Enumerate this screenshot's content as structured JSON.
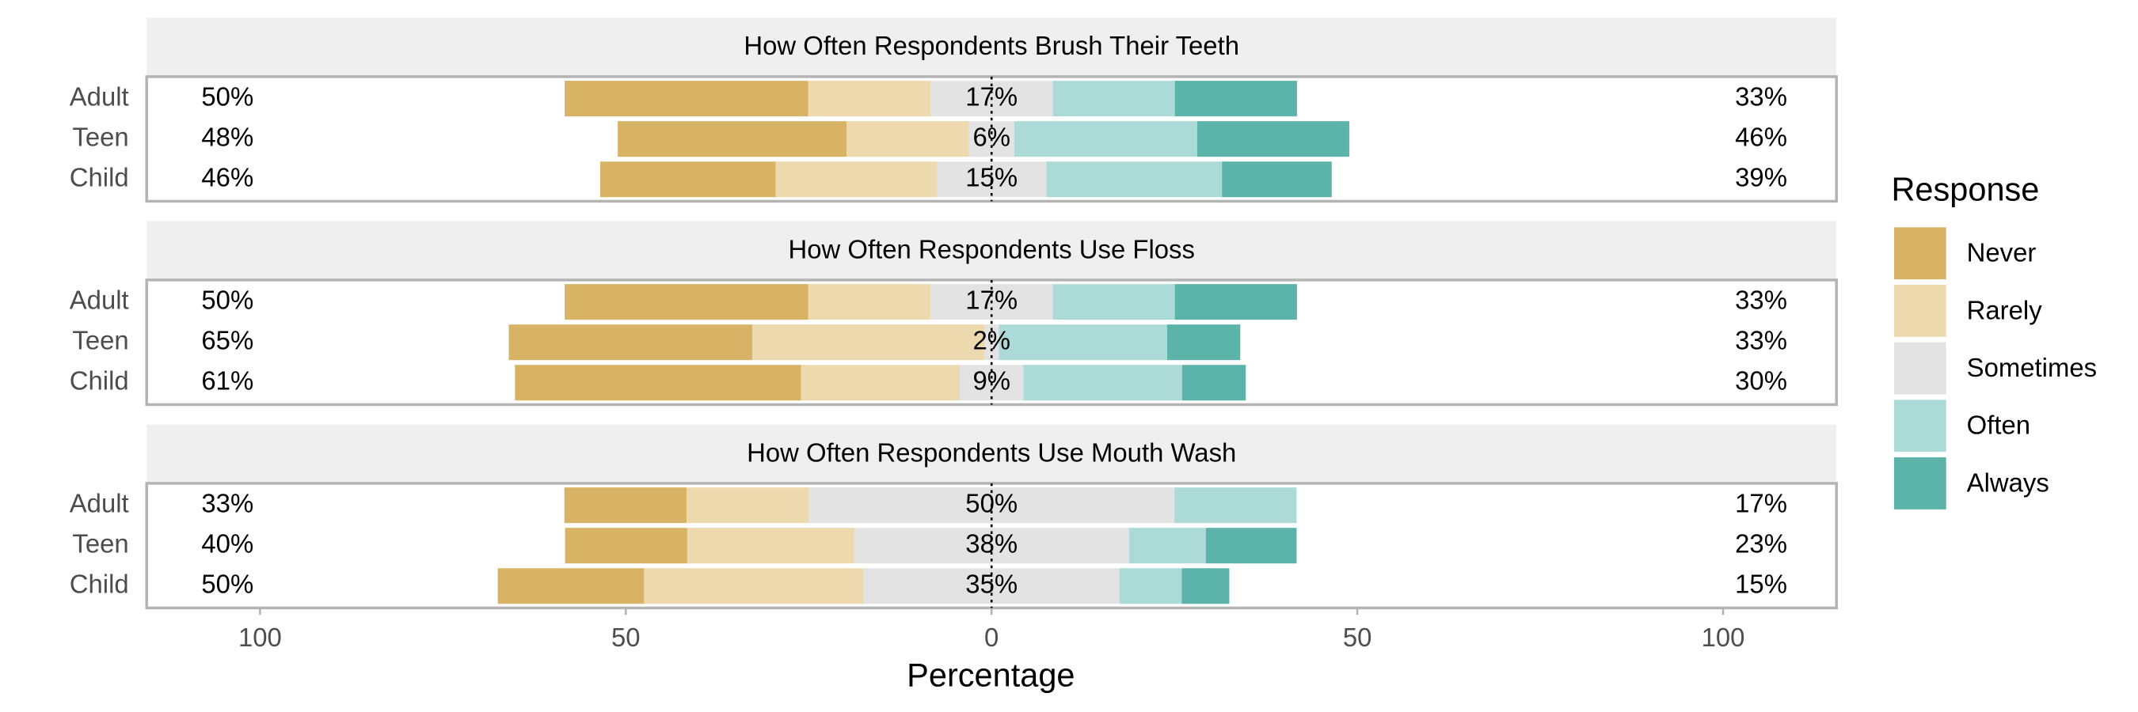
{
  "chart_data": {
    "type": "diverging_bar",
    "xlabel": "Percentage",
    "legend_title": "Response",
    "xlim": [
      -115.5,
      115.5
    ],
    "xticks": [
      {
        "value": -100,
        "label": "100"
      },
      {
        "value": -50,
        "label": "50"
      },
      0,
      50,
      100
    ],
    "series": [
      {
        "name": "Never",
        "color": "#d9b365"
      },
      {
        "name": "Rarely",
        "color": "#ecd9ad"
      },
      {
        "name": "Sometimes",
        "color": "#e3e3e3"
      },
      {
        "name": "Often",
        "color": "#acdad6"
      },
      {
        "name": "Always",
        "color": "#5bb3a9"
      }
    ],
    "facets": [
      {
        "title": "How Often Respondents Brush Their Teeth",
        "categories": [
          "Adult",
          "Teen",
          "Child"
        ],
        "series": [
          {
            "values": [
              33.3,
              31.3,
              24
            ]
          },
          {
            "values": [
              16.7,
              16.7,
              22
            ]
          },
          {
            "values": [
              16.7,
              6.2,
              15
            ]
          },
          {
            "values": [
              16.7,
              25,
              24
            ]
          },
          {
            "values": [
              16.7,
              20.8,
              15
            ]
          }
        ],
        "left_labels": [
          "50%",
          "48%",
          "46%"
        ],
        "center_labels": [
          "17%",
          "6%",
          "15%"
        ],
        "right_labels": [
          "33%",
          "46%",
          "39%"
        ]
      },
      {
        "title": "How Often Respondents Use Floss",
        "categories": [
          "Adult",
          "Teen",
          "Child"
        ],
        "series": [
          {
            "values": [
              33.3,
              33.3,
              39.1
            ]
          },
          {
            "values": [
              16.7,
              31.7,
              21.7
            ]
          },
          {
            "values": [
              16.7,
              2,
              8.7
            ]
          },
          {
            "values": [
              16.7,
              23,
              21.7
            ]
          },
          {
            "values": [
              16.7,
              10,
              8.7
            ]
          }
        ],
        "left_labels": [
          "50%",
          "65%",
          "61%"
        ],
        "center_labels": [
          "17%",
          "2%",
          "9%"
        ],
        "right_labels": [
          "33%",
          "33%",
          "30%"
        ]
      },
      {
        "title": "How Often Respondents Use Mouth Wash",
        "categories": [
          "Adult",
          "Teen",
          "Child"
        ],
        "series": [
          {
            "values": [
              16.7,
              16.7,
              20
            ]
          },
          {
            "values": [
              16.7,
              22.8,
              30
            ]
          },
          {
            "values": [
              50,
              37.6,
              35
            ]
          },
          {
            "values": [
              16.7,
              10.5,
              8.5
            ]
          },
          {
            "values": [
              0,
              12.4,
              6.5
            ]
          }
        ],
        "left_labels": [
          "33%",
          "40%",
          "50%"
        ],
        "center_labels": [
          "50%",
          "38%",
          "35%"
        ],
        "right_labels": [
          "17%",
          "23%",
          "15%"
        ]
      }
    ]
  }
}
